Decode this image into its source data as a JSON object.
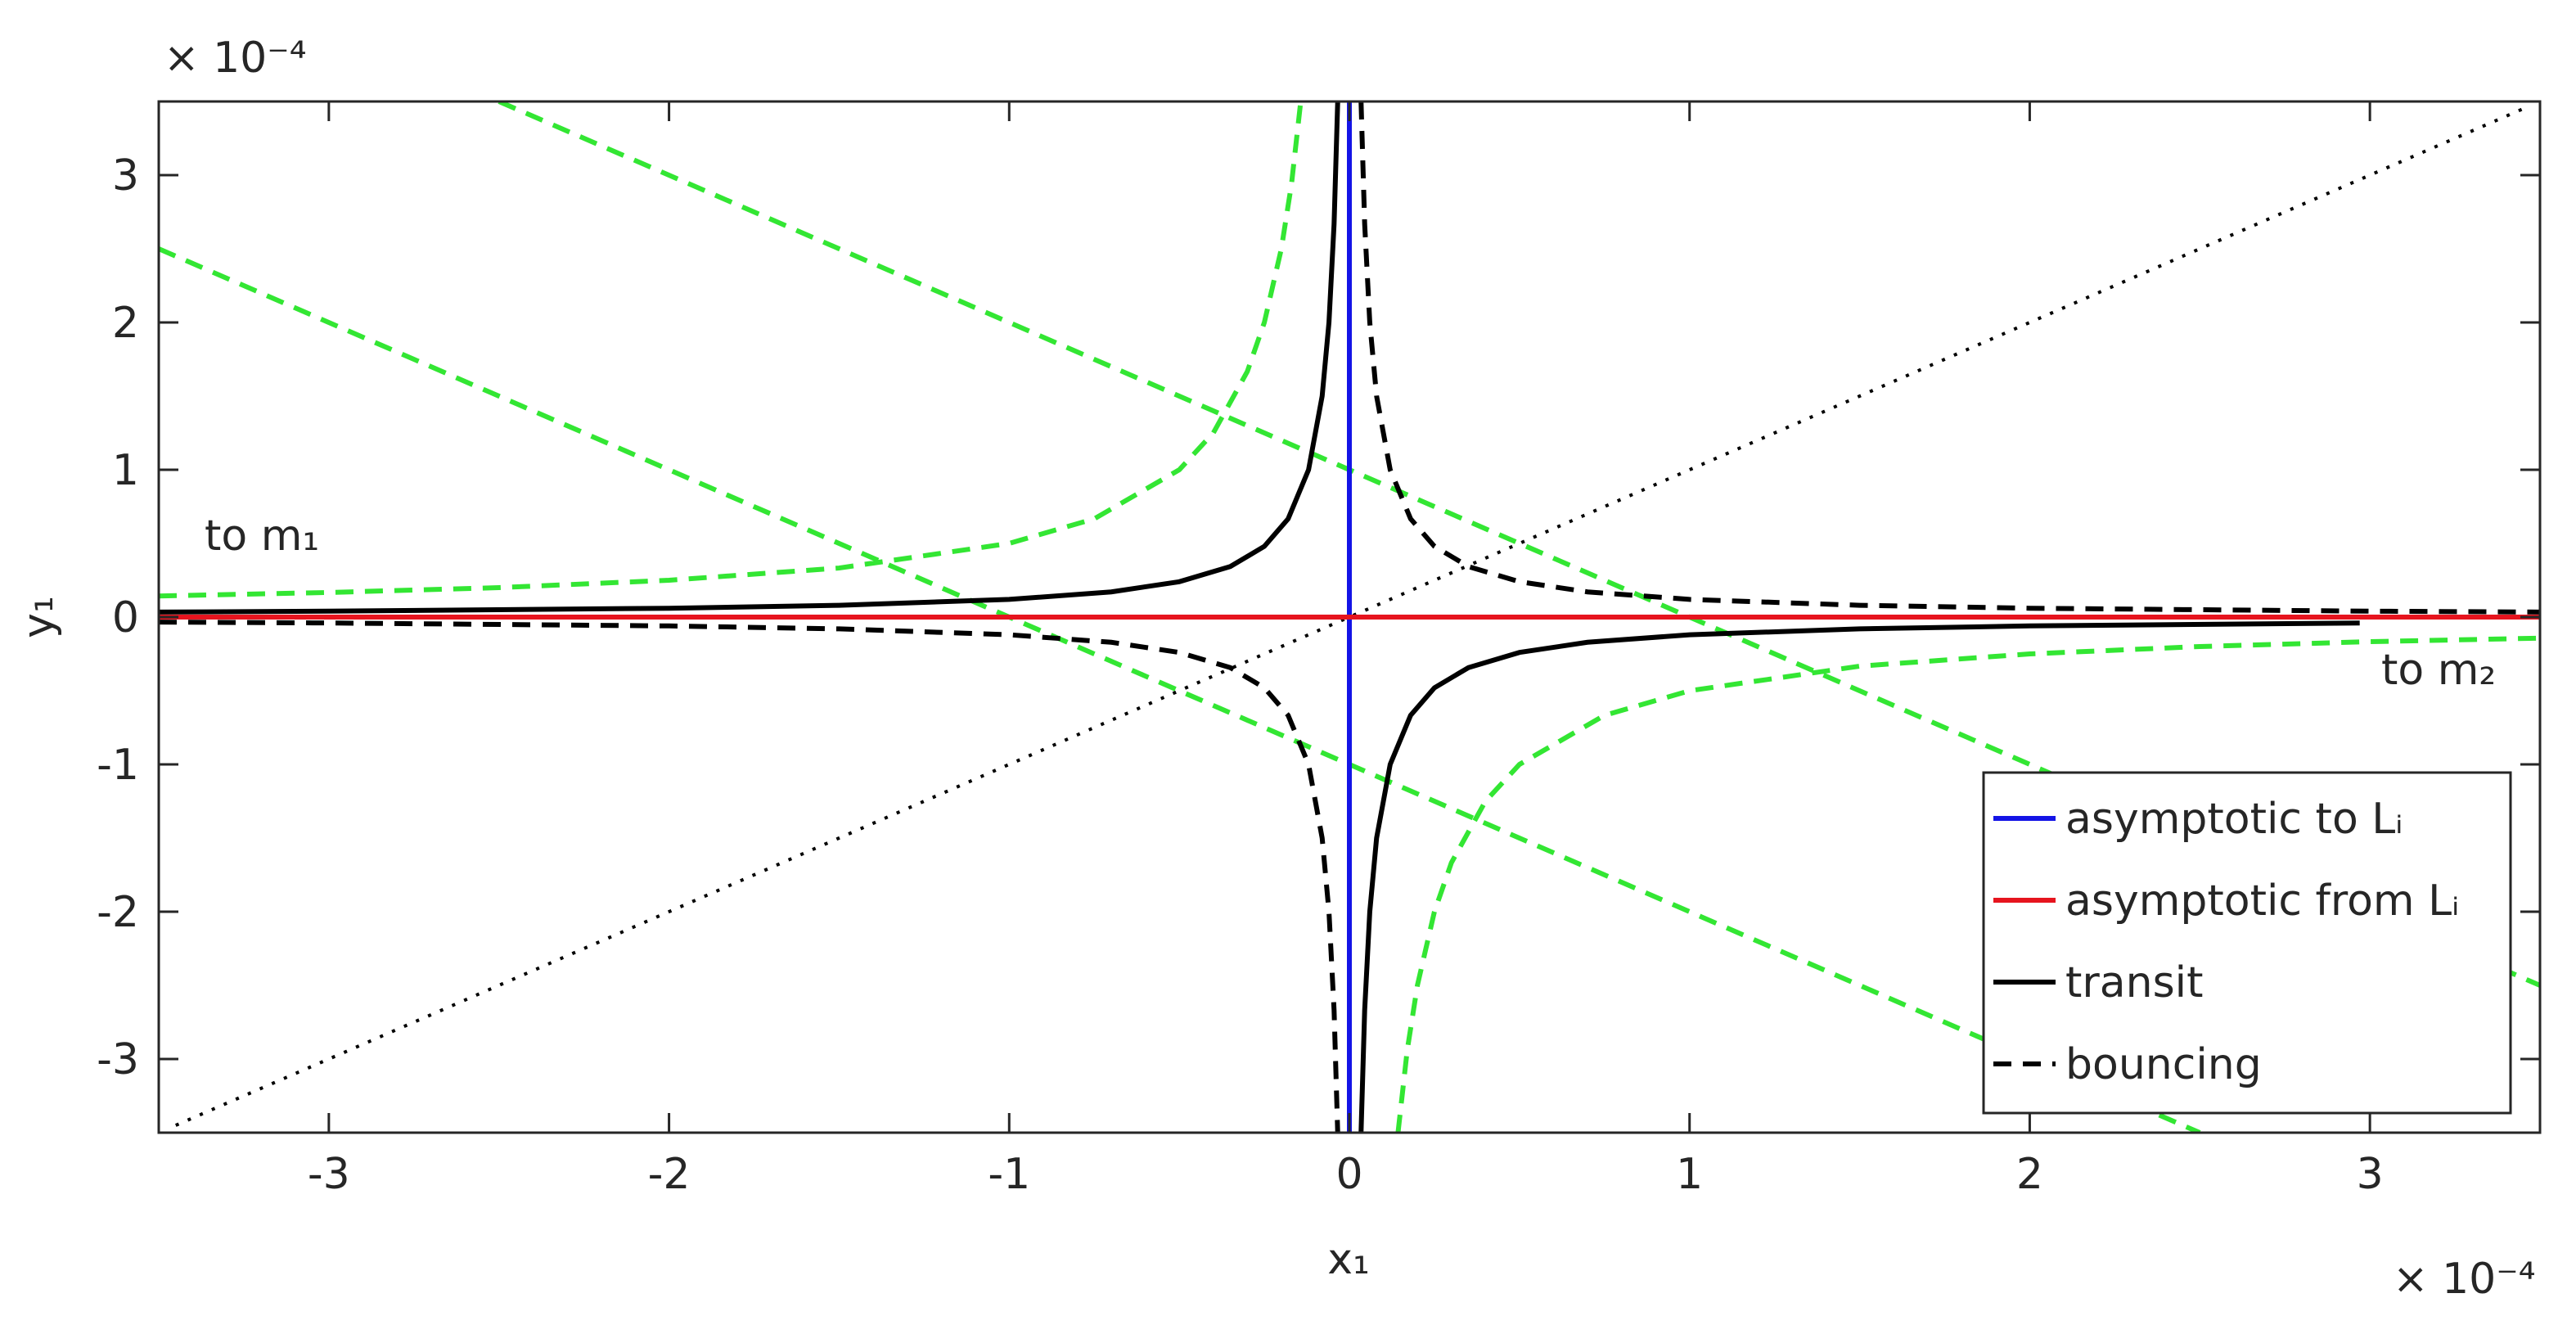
{
  "chart_data": {
    "type": "line",
    "x_label": "x₁",
    "y_label": "y₁",
    "x_exponent": "× 10⁻⁴",
    "y_exponent": "× 10⁻⁴",
    "xlim": [
      -3.5,
      3.5
    ],
    "ylim": [
      -3.5,
      3.5
    ],
    "xticks": [
      -3,
      -2,
      -1,
      0,
      1,
      2,
      3
    ],
    "yticks": [
      -3,
      -2,
      -1,
      0,
      1,
      2,
      3
    ],
    "grid": false,
    "legend": "southeast",
    "annotations": [
      "to m₁",
      "to m₂"
    ],
    "series": [
      {
        "color": "#33e633",
        "line_style": "dashed",
        "x": [
          -2.5,
          3.5,
          null,
          -3.5,
          2.5,
          null,
          -3.5,
          -3,
          -2.5,
          -2,
          -1.5,
          -1,
          -0.75,
          -0.5,
          -0.4,
          -0.3,
          -0.25,
          -0.2,
          -0.17,
          -0.143,
          null,
          0.143,
          0.17,
          0.2,
          0.25,
          0.3,
          0.4,
          0.5,
          0.75,
          1,
          1.5,
          2,
          2.5,
          3,
          3.5
        ],
        "values": [
          3.5,
          -2.5,
          null,
          2.5,
          -3.5,
          null,
          0.143,
          0.167,
          0.2,
          0.25,
          0.333,
          0.5,
          0.667,
          1,
          1.25,
          1.667,
          2,
          2.5,
          2.941,
          3.5,
          null,
          -3.5,
          -2.941,
          -2.5,
          -2,
          -1.667,
          -1.25,
          -1,
          -0.667,
          -0.5,
          -0.333,
          -0.25,
          -0.2,
          -0.167,
          -0.143
        ]
      },
      {
        "color": "#000000",
        "line_style": "dotted",
        "x": [
          -3.45,
          3.45
        ],
        "values": [
          -3.45,
          3.45
        ]
      },
      {
        "name": "asymptotic to Lᵢ",
        "color": "#1414e6",
        "line_style": "solid",
        "x": [
          0,
          0
        ],
        "values": [
          3.5,
          -3.5
        ]
      },
      {
        "name": "asymptotic from Lᵢ",
        "color": "#e6141e",
        "line_style": "solid",
        "x": [
          -3.5,
          3.5
        ],
        "values": [
          0,
          0
        ]
      },
      {
        "name": "transit",
        "color": "#000000",
        "line_style": "solid",
        "x": [
          -3.5,
          -3,
          -2,
          -1.5,
          -1,
          -0.7,
          -0.5,
          -0.35,
          -0.25,
          -0.18,
          -0.12,
          -0.08,
          -0.06,
          -0.045,
          -0.0343,
          null,
          0.0343,
          0.045,
          0.06,
          0.08,
          0.12,
          0.18,
          0.25,
          0.35,
          0.5,
          0.7,
          1,
          1.5,
          2,
          2.97
        ],
        "values": [
          0.034,
          0.04,
          0.06,
          0.08,
          0.12,
          0.171,
          0.24,
          0.343,
          0.48,
          0.667,
          1,
          1.5,
          2,
          2.667,
          3.5,
          null,
          -3.5,
          -2.667,
          -2,
          -1.5,
          -1,
          -0.667,
          -0.48,
          -0.343,
          -0.24,
          -0.171,
          -0.12,
          -0.08,
          -0.06,
          -0.04
        ]
      },
      {
        "name": "bouncing",
        "color": "#000000",
        "line_style": "dashed",
        "x": [
          0.0343,
          0.045,
          0.06,
          0.08,
          0.12,
          0.18,
          0.25,
          0.35,
          0.5,
          0.7,
          1,
          1.5,
          2,
          3,
          3.5,
          null,
          -3.5,
          -3,
          -2,
          -1.5,
          -1,
          -0.7,
          -0.5,
          -0.35,
          -0.25,
          -0.18,
          -0.12,
          -0.08,
          -0.06,
          -0.045,
          -0.0343
        ],
        "values": [
          3.5,
          2.667,
          2,
          1.5,
          1,
          0.667,
          0.48,
          0.343,
          0.24,
          0.171,
          0.12,
          0.08,
          0.06,
          0.04,
          0.034,
          null,
          -0.034,
          -0.04,
          -0.06,
          -0.08,
          -0.12,
          -0.171,
          -0.24,
          -0.343,
          -0.48,
          -0.667,
          -1,
          -1.5,
          -2,
          -2.667,
          -3.5
        ]
      }
    ]
  }
}
